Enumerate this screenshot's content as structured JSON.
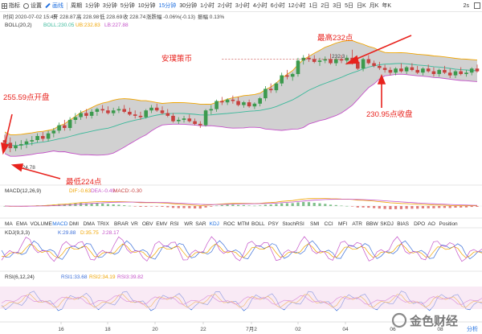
{
  "toolbar": {
    "left": [
      {
        "icon": "grid-icon",
        "label": "指标"
      },
      {
        "icon": "gear-icon",
        "label": "设置"
      },
      {
        "icon": "pen-icon",
        "label": "画线",
        "active": true
      }
    ],
    "periods": [
      "周期",
      "1分钟",
      "3分钟",
      "5分钟",
      "10分钟",
      "15分钟",
      "30分钟",
      "1小时",
      "2小时",
      "3小时",
      "4小时",
      "6小时",
      "12小时",
      "1日",
      "2日",
      "3日",
      "5日",
      "日K",
      "月K",
      "年K"
    ],
    "active_period": "15分钟",
    "right": [
      "2s"
    ]
  },
  "info_line": {
    "time": "时间 2020-07-02 15:45",
    "open": "开 228.87",
    "high": "高 228.98",
    "low": "低 228.69",
    "close": "收 228.74",
    "change": "涨跌幅 -0.06%(-0.13)",
    "amplitude": "振幅 0.13%"
  },
  "boll": {
    "name": "BOLL(20,2)",
    "mid": "BOLL:230.05",
    "up": "UB:232.83",
    "low": "LB:227.88",
    "colors": {
      "mid": "#3bb99b",
      "up": "#f0a400",
      "low": "#c452c8",
      "band_fill": "#c2c2c2",
      "up_candle": "#3c9a4e",
      "down_candle": "#c7413f"
    }
  },
  "macd": {
    "name": "MACD(12,26,9)",
    "dif": "DIF:-0.63",
    "dea": "DEA:-0.49",
    "macd": "MACD:-0.30"
  },
  "kdj": {
    "name": "KDJ(9,3,3)",
    "k": "K:29.88",
    "d": "D:35.75",
    "j": "J:28.17"
  },
  "rsi": {
    "name": "RSI(6,12,24)",
    "rsi1": "RSI1:33.68",
    "rsi2": "RSI2:34.19",
    "rsi3": "RSI3:39.82"
  },
  "indicator_tabs": [
    "MA",
    "EMA",
    "VOLUME",
    "MACD",
    "DMI",
    "DMA",
    "TRIX",
    "BRAR",
    "VR",
    "OBV",
    "EMV",
    "RSI",
    "WR",
    "SAR",
    "KDJ",
    "ROC",
    "MTM",
    "BOLL",
    "PSY",
    "StochRSI",
    "SMI",
    "CCI",
    "MFI",
    "ATR",
    "BBW",
    "SKDJ",
    "BIAS",
    "DPO",
    "AO",
    "Position"
  ],
  "active_tabs": [
    "MACD",
    "KDJ"
  ],
  "annotations": {
    "title": "安璞策币",
    "high": "最高232点",
    "open": "255.59点开盘",
    "low": "最低224点",
    "close": "230.95点收盘",
    "high_value": "232.3",
    "low_value": "224.78"
  },
  "x_ticks": [
    "16",
    "18",
    "20",
    "22",
    "7月2",
    "02",
    "04",
    "06",
    "08"
  ],
  "corner_link": "分析",
  "watermark": "金色财经",
  "chart_data": {
    "type": "candlestick",
    "title": "",
    "xlabel": "",
    "ylabel": "",
    "annotations": [
      "安璞策币",
      "最高232点",
      "255.59点开盘",
      "最低224点",
      "230.95点收盘",
      "232.3",
      "224.78"
    ],
    "candles": [
      [
        225.6,
        226.0,
        225.0,
        225.4
      ],
      [
        225.4,
        225.8,
        224.7,
        225.0
      ],
      [
        225.0,
        225.5,
        224.78,
        225.2
      ],
      [
        225.2,
        225.6,
        224.9,
        225.3
      ],
      [
        225.3,
        225.7,
        225.0,
        225.5
      ],
      [
        225.5,
        225.9,
        225.2,
        225.6
      ],
      [
        225.6,
        226.1,
        225.4,
        225.9
      ],
      [
        225.9,
        226.2,
        225.5,
        225.7
      ],
      [
        225.7,
        226.3,
        225.5,
        226.1
      ],
      [
        226.1,
        226.5,
        225.8,
        226.3
      ],
      [
        226.3,
        226.9,
        226.1,
        226.7
      ],
      [
        226.7,
        227.1,
        226.3,
        226.5
      ],
      [
        226.5,
        227.3,
        226.3,
        227.1
      ],
      [
        227.1,
        227.6,
        226.8,
        227.3
      ],
      [
        227.3,
        227.8,
        227.1,
        227.6
      ],
      [
        227.6,
        227.9,
        227.2,
        227.4
      ],
      [
        227.4,
        227.9,
        227.2,
        227.7
      ],
      [
        227.7,
        228.0,
        227.4,
        227.9
      ],
      [
        227.9,
        228.2,
        227.6,
        227.8
      ],
      [
        227.8,
        228.1,
        227.5,
        227.6
      ],
      [
        227.6,
        228.0,
        227.4,
        227.8
      ],
      [
        227.8,
        228.1,
        227.6,
        227.9
      ],
      [
        227.9,
        228.2,
        227.6,
        227.7
      ],
      [
        227.7,
        228.0,
        227.4,
        227.5
      ],
      [
        227.5,
        227.8,
        227.2,
        227.4
      ],
      [
        227.4,
        227.7,
        227.1,
        227.3
      ],
      [
        227.3,
        227.9,
        227.2,
        227.8
      ],
      [
        227.8,
        228.2,
        227.6,
        228.0
      ],
      [
        228.0,
        228.3,
        227.7,
        227.8
      ],
      [
        227.8,
        228.1,
        227.5,
        227.6
      ],
      [
        227.6,
        227.9,
        227.3,
        227.4
      ],
      [
        227.4,
        227.6,
        226.9,
        227.0
      ],
      [
        227.0,
        227.3,
        226.8,
        227.1
      ],
      [
        227.1,
        227.4,
        226.9,
        227.2
      ],
      [
        227.2,
        227.5,
        226.9,
        227.0
      ],
      [
        227.0,
        227.2,
        226.7,
        226.8
      ],
      [
        226.8,
        227.0,
        226.5,
        226.7
      ],
      [
        226.7,
        227.9,
        226.6,
        227.8
      ],
      [
        227.8,
        228.2,
        227.5,
        227.9
      ],
      [
        227.9,
        228.6,
        227.7,
        228.5
      ],
      [
        228.5,
        228.8,
        228.2,
        228.4
      ],
      [
        228.4,
        228.7,
        228.2,
        228.6
      ],
      [
        228.6,
        228.9,
        228.3,
        228.5
      ],
      [
        228.5,
        228.8,
        228.1,
        228.2
      ],
      [
        228.2,
        228.5,
        228.0,
        228.4
      ],
      [
        228.4,
        228.6,
        228.0,
        228.1
      ],
      [
        228.1,
        228.4,
        227.9,
        228.3
      ],
      [
        228.3,
        228.8,
        228.1,
        228.7
      ],
      [
        228.7,
        229.6,
        228.5,
        229.4
      ],
      [
        229.4,
        229.8,
        229.1,
        229.3
      ],
      [
        229.3,
        229.9,
        229.1,
        229.8
      ],
      [
        229.8,
        230.6,
        229.6,
        230.4
      ],
      [
        230.4,
        230.8,
        230.1,
        230.3
      ],
      [
        230.3,
        230.6,
        230.0,
        230.5
      ],
      [
        230.5,
        231.7,
        230.3,
        231.5
      ],
      [
        231.5,
        231.9,
        231.2,
        231.7
      ],
      [
        231.7,
        232.0,
        231.4,
        231.6
      ],
      [
        231.6,
        231.9,
        231.3,
        231.4
      ],
      [
        231.4,
        231.7,
        231.1,
        231.5
      ],
      [
        231.5,
        231.8,
        231.3,
        231.6
      ],
      [
        231.6,
        232.0,
        231.2,
        231.3
      ],
      [
        231.3,
        231.7,
        231.1,
        231.6
      ],
      [
        231.6,
        231.9,
        231.3,
        231.5
      ],
      [
        231.5,
        231.9,
        231.2,
        231.7
      ],
      [
        231.7,
        232.3,
        231.2,
        231.4
      ],
      [
        231.4,
        231.6,
        230.8,
        230.9
      ],
      [
        230.9,
        231.7,
        230.7,
        231.6
      ],
      [
        231.6,
        231.9,
        231.2,
        231.3
      ],
      [
        231.3,
        231.5,
        231.0,
        231.1
      ],
      [
        231.1,
        231.4,
        230.8,
        230.95
      ],
      [
        230.95,
        231.2,
        230.6,
        230.8
      ],
      [
        230.8,
        231.0,
        230.4,
        230.6
      ],
      [
        230.6,
        231.0,
        230.4,
        230.9
      ],
      [
        230.9,
        231.3,
        230.6,
        230.7
      ],
      [
        230.7,
        231.1,
        230.5,
        231.0
      ],
      [
        231.0,
        231.3,
        230.7,
        230.8
      ],
      [
        230.8,
        231.1,
        230.5,
        230.6
      ],
      [
        230.6,
        231.0,
        230.4,
        230.9
      ],
      [
        230.9,
        231.2,
        230.6,
        230.7
      ],
      [
        230.7,
        231.0,
        230.3,
        230.5
      ],
      [
        230.5,
        230.9,
        230.3,
        230.8
      ],
      [
        230.8,
        231.1,
        230.5,
        230.6
      ],
      [
        230.6,
        230.9,
        230.2,
        230.4
      ],
      [
        230.4,
        230.8,
        230.2,
        230.7
      ],
      [
        230.7,
        231.0,
        230.4,
        230.5
      ],
      [
        230.5,
        230.8,
        230.3,
        230.6
      ],
      [
        230.6,
        231.0,
        230.4,
        230.9
      ],
      [
        230.9,
        231.2,
        230.6,
        230.7
      ]
    ]
  }
}
